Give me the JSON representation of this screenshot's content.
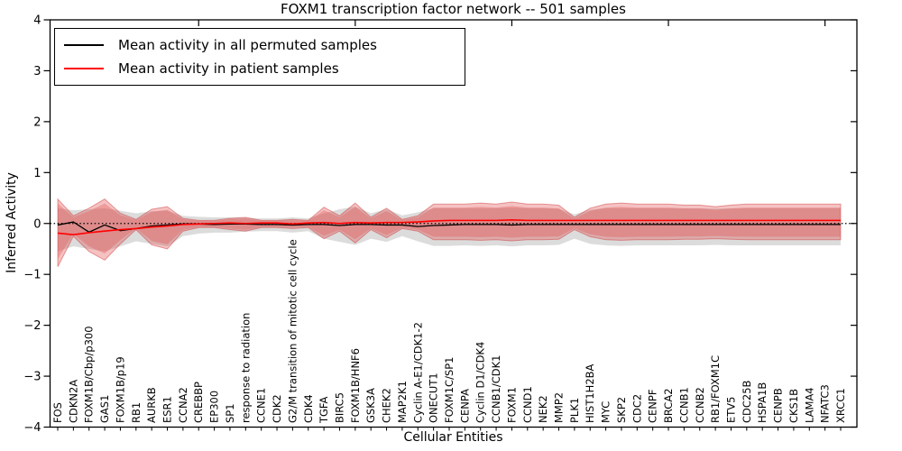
{
  "figure": {
    "title": "FOXM1 transcription factor network -- 501 samples",
    "xlabel": "Cellular Entities",
    "ylabel": "Inferred Activity"
  },
  "legend": {
    "entries": [
      {
        "label": "Mean activity in all permuted samples",
        "color": "#000000"
      },
      {
        "label": "Mean activity in patient samples",
        "color": "#ff0000"
      }
    ]
  },
  "colors": {
    "background": "#ffffff",
    "axis": "#000000",
    "permuted_line": "#000000",
    "patient_line": "#ff0000",
    "patient_band": "#e04545",
    "permuted_band": "#9a9a9a"
  },
  "chart_data": {
    "type": "line",
    "title": "FOXM1 transcription factor network -- 501 samples",
    "xlabel": "Cellular Entities",
    "ylabel": "Inferred Activity",
    "ylim": [
      -4,
      4
    ],
    "yticks": [
      4,
      3,
      2,
      1,
      0,
      -1,
      -2,
      -3,
      -4
    ],
    "grid": false,
    "legend_position": "upper left",
    "zero_line": {
      "style": "dotted",
      "value": 0
    },
    "categories": [
      "FOS",
      "CDKN2A",
      "FOXM1B/Cbp/p300",
      "GAS1",
      "FOXM1B/p19",
      "RB1",
      "AURKB",
      "ESR1",
      "CCNA2",
      "CREBBP",
      "EP300",
      "SP1",
      "response to radiation",
      "CCNE1",
      "CDK2",
      "G2/M transition of mitotic cell cycle",
      "CDK4",
      "TGFA",
      "BIRC5",
      "FOXM1B/HNF6",
      "GSK3A",
      "CHEK2",
      "MAP2K1",
      "Cyclin A-E1/CDK1-2",
      "ONECUT1",
      "FOXM1C/SP1",
      "CENPA",
      "Cyclin D1/CDK4",
      "CCNB1/CDK1",
      "FOXM1",
      "CCND1",
      "NEK2",
      "MMP2",
      "PLK1",
      "HIST1H2BA",
      "MYC",
      "SKP2",
      "CDC2",
      "CENPF",
      "BRCA2",
      "CCNB1",
      "CCNB2",
      "RB1/FOXM1C",
      "ETV5",
      "CDC25B",
      "HSPA1B",
      "CENPB",
      "CKS1B",
      "LAMA4",
      "NFATC3",
      "XRCC1"
    ],
    "series": [
      {
        "name": "Mean activity in all permuted samples",
        "color": "#000000",
        "values": [
          -0.03,
          0.03,
          -0.17,
          -0.03,
          -0.14,
          -0.1,
          -0.05,
          -0.03,
          -0.01,
          -0.01,
          -0.02,
          -0.01,
          -0.01,
          -0.02,
          -0.02,
          -0.03,
          -0.02,
          -0.02,
          -0.04,
          -0.02,
          -0.02,
          -0.03,
          -0.03,
          -0.06,
          -0.04,
          -0.03,
          -0.02,
          -0.02,
          -0.02,
          -0.03,
          -0.02,
          -0.02,
          -0.02,
          -0.02,
          -0.02,
          -0.02,
          -0.02,
          -0.02,
          -0.02,
          -0.02,
          -0.02,
          -0.02,
          -0.02,
          -0.02,
          -0.02,
          -0.02,
          -0.02,
          -0.02,
          -0.02,
          -0.02,
          -0.02
        ]
      },
      {
        "name": "Mean activity in patient samples",
        "color": "#ff0000",
        "values": [
          -0.19,
          -0.22,
          -0.18,
          -0.15,
          -0.12,
          -0.1,
          -0.07,
          -0.05,
          -0.02,
          -0.01,
          0.0,
          0.01,
          0.0,
          0.01,
          0.01,
          -0.01,
          0.01,
          0.02,
          0.0,
          0.02,
          0.01,
          0.02,
          0.02,
          0.03,
          0.05,
          0.06,
          0.06,
          0.06,
          0.06,
          0.07,
          0.06,
          0.06,
          0.06,
          0.06,
          0.06,
          0.06,
          0.06,
          0.06,
          0.06,
          0.06,
          0.06,
          0.06,
          0.06,
          0.06,
          0.06,
          0.06,
          0.06,
          0.06,
          0.06,
          0.06,
          0.06
        ]
      }
    ],
    "bands": [
      {
        "name": "permuted samples band",
        "color": "#9a9a9a",
        "opacity": 0.35,
        "upper": [
          0.3,
          0.26,
          0.28,
          0.3,
          0.25,
          0.2,
          0.24,
          0.25,
          0.15,
          0.13,
          0.12,
          0.12,
          0.11,
          0.1,
          0.1,
          0.12,
          0.1,
          0.2,
          0.28,
          0.33,
          0.2,
          0.28,
          0.16,
          0.22,
          0.3,
          0.3,
          0.3,
          0.3,
          0.3,
          0.31,
          0.3,
          0.3,
          0.29,
          0.18,
          0.27,
          0.3,
          0.3,
          0.3,
          0.3,
          0.3,
          0.3,
          0.3,
          0.29,
          0.3,
          0.3,
          0.3,
          0.3,
          0.3,
          0.3,
          0.3,
          0.3
        ],
        "lower": [
          -0.55,
          -0.45,
          -0.5,
          -0.55,
          -0.45,
          -0.35,
          -0.4,
          -0.45,
          -0.25,
          -0.2,
          -0.18,
          -0.18,
          -0.16,
          -0.15,
          -0.15,
          -0.18,
          -0.15,
          -0.3,
          -0.36,
          -0.42,
          -0.3,
          -0.36,
          -0.25,
          -0.35,
          -0.44,
          -0.44,
          -0.43,
          -0.44,
          -0.43,
          -0.45,
          -0.43,
          -0.43,
          -0.42,
          -0.3,
          -0.4,
          -0.43,
          -0.44,
          -0.43,
          -0.43,
          -0.43,
          -0.43,
          -0.43,
          -0.42,
          -0.43,
          -0.43,
          -0.43,
          -0.43,
          -0.43,
          -0.43,
          -0.43,
          -0.43
        ]
      },
      {
        "name": "patient samples band",
        "color": "#e04545",
        "opacity": 0.33,
        "upper": [
          0.48,
          0.15,
          0.3,
          0.48,
          0.2,
          0.08,
          0.28,
          0.33,
          0.1,
          0.06,
          0.06,
          0.1,
          0.12,
          0.06,
          0.06,
          0.08,
          0.06,
          0.32,
          0.15,
          0.4,
          0.12,
          0.3,
          0.08,
          0.15,
          0.38,
          0.38,
          0.38,
          0.4,
          0.38,
          0.42,
          0.38,
          0.38,
          0.36,
          0.12,
          0.3,
          0.38,
          0.4,
          0.38,
          0.38,
          0.38,
          0.36,
          0.36,
          0.33,
          0.36,
          0.38,
          0.38,
          0.38,
          0.38,
          0.38,
          0.38,
          0.38
        ],
        "lower": [
          -0.85,
          -0.25,
          -0.55,
          -0.72,
          -0.4,
          -0.12,
          -0.42,
          -0.5,
          -0.15,
          -0.08,
          -0.08,
          -0.12,
          -0.15,
          -0.08,
          -0.08,
          -0.1,
          -0.08,
          -0.3,
          -0.15,
          -0.38,
          -0.12,
          -0.28,
          -0.1,
          -0.15,
          -0.32,
          -0.32,
          -0.32,
          -0.33,
          -0.32,
          -0.34,
          -0.32,
          -0.32,
          -0.31,
          -0.12,
          -0.26,
          -0.32,
          -0.33,
          -0.32,
          -0.32,
          -0.32,
          -0.31,
          -0.31,
          -0.3,
          -0.31,
          -0.32,
          -0.32,
          -0.32,
          -0.32,
          -0.32,
          -0.32,
          -0.32
        ]
      }
    ]
  }
}
